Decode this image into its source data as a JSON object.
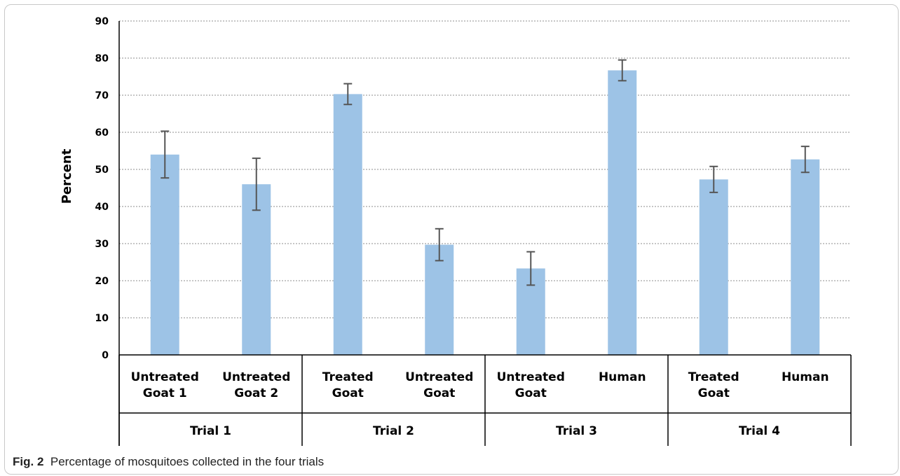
{
  "chart_data": {
    "type": "bar",
    "ylabel": "Percent",
    "ylim": [
      0,
      90
    ],
    "yticks": [
      0,
      10,
      20,
      30,
      40,
      50,
      60,
      70,
      80,
      90
    ],
    "grid": true,
    "bar_color": "#9dc3e6",
    "error_bar_color": "#555555",
    "categories": [
      {
        "lines": [
          "Untreated",
          "Goat 1"
        ],
        "group": "Trial 1",
        "value": 54,
        "error": 6.3
      },
      {
        "lines": [
          "Untreated",
          "Goat 2"
        ],
        "group": "Trial 1",
        "value": 46,
        "error": 7
      },
      {
        "lines": [
          "Treated",
          "Goat"
        ],
        "group": "Trial 2",
        "value": 70.3,
        "error": 2.8
      },
      {
        "lines": [
          "Untreated",
          "Goat"
        ],
        "group": "Trial 2",
        "value": 29.7,
        "error": 4.3
      },
      {
        "lines": [
          "Untreated",
          "Goat"
        ],
        "group": "Trial 3",
        "value": 23.3,
        "error": 4.5
      },
      {
        "lines": [
          "Human"
        ],
        "group": "Trial 3",
        "value": 76.7,
        "error": 2.8
      },
      {
        "lines": [
          "Treated",
          "Goat"
        ],
        "group": "Trial 4",
        "value": 47.3,
        "error": 3.5
      },
      {
        "lines": [
          "Human"
        ],
        "group": "Trial 4",
        "value": 52.7,
        "error": 3.5
      }
    ],
    "groups": [
      "Trial 1",
      "Trial 2",
      "Trial 3",
      "Trial 4"
    ]
  },
  "caption": {
    "label": "Fig. 2",
    "text": "Percentage of mosquitoes collected in the four trials"
  }
}
